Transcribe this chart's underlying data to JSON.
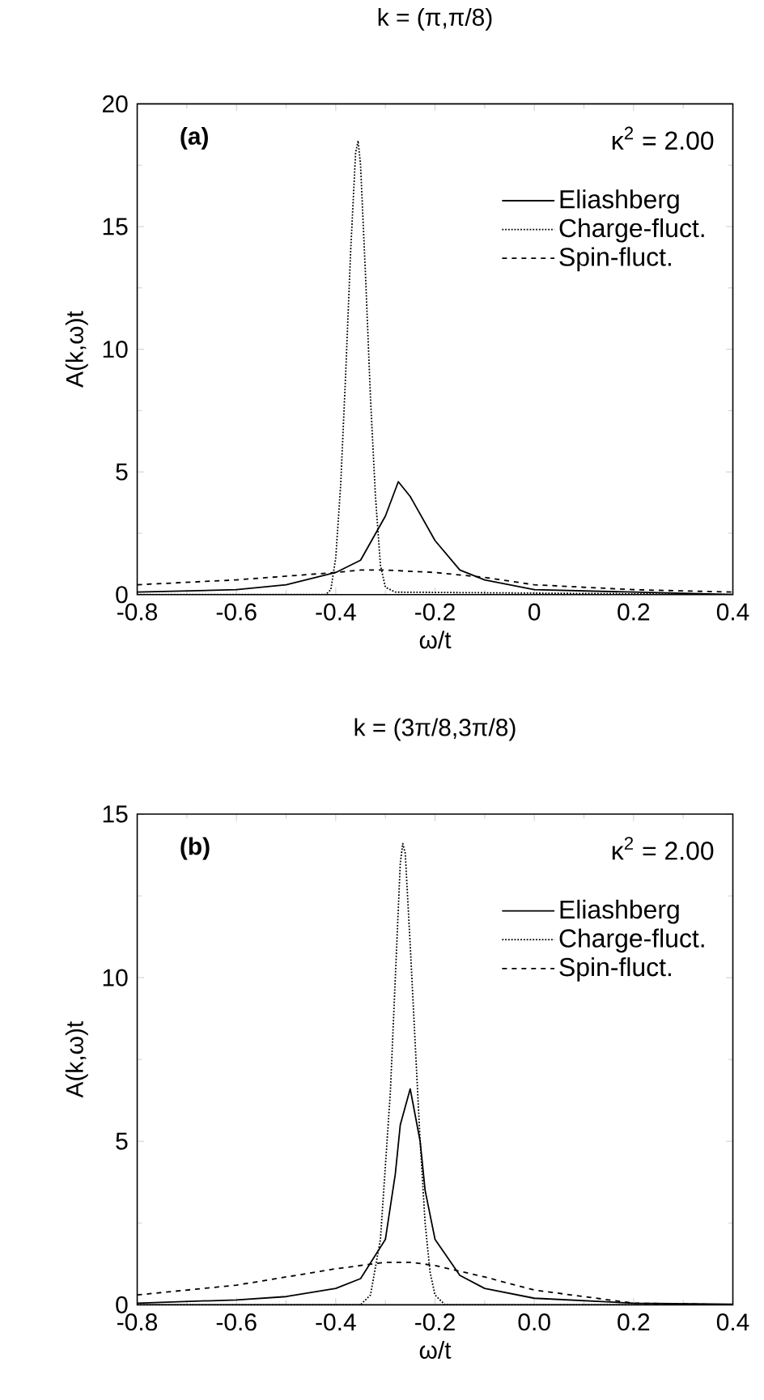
{
  "chart_data": [
    {
      "type": "line",
      "title": "k = (π,π/8)",
      "xlabel": "ω/t",
      "ylabel": "A(k,ω)t",
      "xlim": [
        -0.8,
        0.4
      ],
      "ylim": [
        0,
        20
      ],
      "xticks": [
        -0.8,
        -0.6,
        -0.4,
        -0.2,
        0,
        0.2,
        0.4
      ],
      "yticks": [
        0,
        5,
        10,
        15,
        20
      ],
      "legend": "top right",
      "annotations": [
        "(a)",
        "κ$^{2}$ = 2.00"
      ],
      "series": [
        {
          "name": "Eliashberg",
          "color": "#000000",
          "line_style": "solid",
          "x": [
            -0.8,
            -0.6,
            -0.5,
            -0.4,
            -0.35,
            -0.3,
            -0.274,
            -0.25,
            -0.2,
            -0.15,
            -0.1,
            0,
            0.2,
            0.4
          ],
          "values": [
            0.1,
            0.2,
            0.4,
            0.9,
            1.4,
            3.2,
            4.6,
            4.0,
            2.2,
            1.0,
            0.6,
            0.2,
            0.1,
            0
          ]
        },
        {
          "name": "Charge-fluct.",
          "color": "#000000",
          "line_style": "dotted",
          "x": [
            -0.8,
            -0.42,
            -0.41,
            -0.4,
            -0.39,
            -0.38,
            -0.37,
            -0.36,
            -0.355,
            -0.35,
            -0.34,
            -0.33,
            -0.32,
            -0.31,
            -0.3,
            -0.28,
            0.4
          ],
          "values": [
            0,
            0,
            0.2,
            1.5,
            4.5,
            9,
            14,
            18,
            18.5,
            17.5,
            13,
            8,
            4,
            1.2,
            0.3,
            0.1,
            0
          ]
        },
        {
          "name": "Spin-fluct.",
          "color": "#000000",
          "line_style": "dashed",
          "x": [
            -0.8,
            -0.6,
            -0.4,
            -0.35,
            -0.3,
            -0.2,
            -0.1,
            0,
            0.2,
            0.4
          ],
          "values": [
            0.4,
            0.6,
            0.9,
            1.0,
            1.0,
            0.9,
            0.7,
            0.4,
            0.2,
            0.1
          ]
        }
      ]
    },
    {
      "type": "line",
      "title": "k = (3π/8,3π/8)",
      "xlabel": "ω/t",
      "ylabel": "A(k,ω)t",
      "xlim": [
        -0.8,
        0.4
      ],
      "ylim": [
        0,
        15
      ],
      "xticks": [
        -0.8,
        -0.6,
        -0.4,
        -0.2,
        {
          "value": 0,
          "label": "0.0"
        },
        0.2,
        0.4
      ],
      "yticks": [
        0,
        5,
        10,
        15
      ],
      "legend": "top right",
      "annotations": [
        "(b)",
        "κ$^{2}$ = 2.00"
      ],
      "series": [
        {
          "name": "Eliashberg",
          "color": "#000000",
          "line_style": "solid",
          "x": [
            -0.8,
            -0.6,
            -0.5,
            -0.4,
            -0.35,
            -0.3,
            -0.28,
            -0.27,
            -0.25,
            -0.23,
            -0.22,
            -0.2,
            -0.15,
            -0.1,
            0,
            0.2,
            0.4
          ],
          "values": [
            0.05,
            0.15,
            0.25,
            0.5,
            0.8,
            2.0,
            4.0,
            5.5,
            6.6,
            5.0,
            3.5,
            2.0,
            0.9,
            0.5,
            0.2,
            0.05,
            0.02
          ]
        },
        {
          "name": "Charge-fluct.",
          "color": "#000000",
          "line_style": "dotted",
          "x": [
            -0.8,
            -0.35,
            -0.33,
            -0.31,
            -0.29,
            -0.28,
            -0.27,
            -0.265,
            -0.26,
            -0.25,
            -0.24,
            -0.23,
            -0.22,
            -0.21,
            -0.2,
            -0.18,
            0.4
          ],
          "values": [
            0,
            0,
            0.3,
            2,
            6.5,
            10,
            13.5,
            14.1,
            13.8,
            11,
            8,
            5,
            2.5,
            1,
            0.3,
            0,
            0
          ]
        },
        {
          "name": "Spin-fluct.",
          "color": "#000000",
          "line_style": "dashed",
          "x": [
            -0.8,
            -0.6,
            -0.4,
            -0.3,
            -0.25,
            -0.2,
            -0.1,
            0,
            0.2,
            0.4
          ],
          "values": [
            0.3,
            0.6,
            1.1,
            1.3,
            1.3,
            1.2,
            0.85,
            0.45,
            0.05,
            0.0
          ]
        }
      ]
    }
  ]
}
